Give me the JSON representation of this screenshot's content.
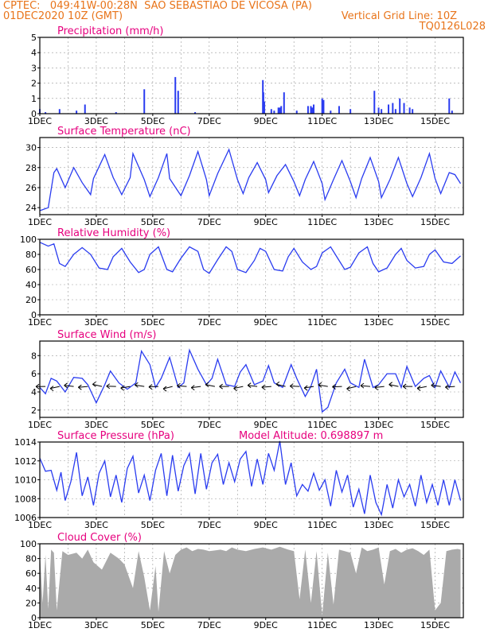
{
  "header": {
    "line1": "CPTEC:   049:41W-00:28N  SAO SEBASTIAO DE VICOSA (PA)",
    "line2": "01DEC2020 10Z (GMT)",
    "grid_note": "Vertical Grid Line: 10Z",
    "code": "TQ0126L028"
  },
  "colors": {
    "header": "#e8741a",
    "title": "#e6007e",
    "series": "#2a3cf0",
    "cloud": "#aaaaaa"
  },
  "x_ticks": [
    "1DEC",
    "3DEC",
    "5DEC",
    "7DEC",
    "9DEC",
    "11DEC",
    "13DEC",
    "15DEC"
  ],
  "chart_data": [
    {
      "id": "precip",
      "type": "bar",
      "title": "Precipitation (mm/h)",
      "ylim": [
        0,
        5
      ],
      "yticks": [
        "0",
        "1",
        "2",
        "3",
        "4",
        "5"
      ],
      "x": [
        1.0,
        1.2,
        1.7,
        2.3,
        2.6,
        3.7,
        4.7,
        5.8,
        5.9,
        6.5,
        8.9,
        8.92,
        8.95,
        9.2,
        9.3,
        9.45,
        9.5,
        9.55,
        9.65,
        10.1,
        10.5,
        10.6,
        10.65,
        10.7,
        11.0,
        11.05,
        11.3,
        11.6,
        12.0,
        12.85,
        13.0,
        13.1,
        13.35,
        13.5,
        13.6,
        13.75,
        13.9,
        14.1,
        14.2,
        15.5,
        15.6
      ],
      "values": [
        0.3,
        0.1,
        0.3,
        0.2,
        0.6,
        0.1,
        1.6,
        2.4,
        1.5,
        0.1,
        2.2,
        1.4,
        0.8,
        0.3,
        0.2,
        0.4,
        0.4,
        0.5,
        1.4,
        0.2,
        0.5,
        0.5,
        0.4,
        0.6,
        1.0,
        0.9,
        0.2,
        0.5,
        0.3,
        1.5,
        0.4,
        0.3,
        0.6,
        0.7,
        0.3,
        1.0,
        0.7,
        0.4,
        0.3,
        1.0,
        0.2
      ]
    },
    {
      "id": "temp",
      "type": "line",
      "title": "Surface Temperature (nC)",
      "ylim": [
        23.3,
        31
      ],
      "yticks": [
        "24",
        "26",
        "28",
        "30"
      ],
      "ytick_values": [
        24,
        26,
        28,
        30
      ],
      "x": [
        1.0,
        1.3,
        1.5,
        1.6,
        1.9,
        2.2,
        2.5,
        2.8,
        2.9,
        3.3,
        3.6,
        3.9,
        4.2,
        4.3,
        4.7,
        4.9,
        5.2,
        5.5,
        5.6,
        6.0,
        6.3,
        6.6,
        6.9,
        7.0,
        7.3,
        7.7,
        8.0,
        8.2,
        8.4,
        8.7,
        9.0,
        9.1,
        9.4,
        9.7,
        10.0,
        10.2,
        10.4,
        10.7,
        11.0,
        11.1,
        11.4,
        11.7,
        12.0,
        12.2,
        12.4,
        12.7,
        13.0,
        13.1,
        13.4,
        13.7,
        14.0,
        14.2,
        14.5,
        14.8,
        15.0,
        15.2,
        15.5,
        15.7,
        15.9
      ],
      "values": [
        23.7,
        24.0,
        27.5,
        27.9,
        26.0,
        28.0,
        26.5,
        25.3,
        26.9,
        29.3,
        27.0,
        25.3,
        27.0,
        29.4,
        26.8,
        25.1,
        27.0,
        29.4,
        26.9,
        25.2,
        27.2,
        29.6,
        26.8,
        25.2,
        27.4,
        29.8,
        26.8,
        25.4,
        27.0,
        28.5,
        26.8,
        25.5,
        27.2,
        28.3,
        26.6,
        25.2,
        26.8,
        28.6,
        26.4,
        24.8,
        26.8,
        28.7,
        26.6,
        25.0,
        26.9,
        29.0,
        26.6,
        25.0,
        26.8,
        29.0,
        26.4,
        25.1,
        27.0,
        29.4,
        26.9,
        25.4,
        27.5,
        27.3,
        26.4
      ]
    },
    {
      "id": "rh",
      "type": "line",
      "title": "Relative Humidity (%)",
      "ylim": [
        0,
        100
      ],
      "yticks": [
        "0",
        "20",
        "40",
        "60",
        "80",
        "100"
      ],
      "ytick_values": [
        0,
        20,
        40,
        60,
        80,
        100
      ],
      "x": [
        1.0,
        1.3,
        1.5,
        1.7,
        1.9,
        2.2,
        2.5,
        2.8,
        3.1,
        3.4,
        3.6,
        3.9,
        4.2,
        4.5,
        4.7,
        4.9,
        5.2,
        5.5,
        5.7,
        6.0,
        6.3,
        6.6,
        6.8,
        7.0,
        7.3,
        7.6,
        7.8,
        8.0,
        8.3,
        8.6,
        8.8,
        9.0,
        9.3,
        9.6,
        9.8,
        10.0,
        10.3,
        10.6,
        10.8,
        11.0,
        11.3,
        11.6,
        11.8,
        12.0,
        12.3,
        12.6,
        12.8,
        13.0,
        13.3,
        13.6,
        13.8,
        14.0,
        14.3,
        14.6,
        14.8,
        15.0,
        15.3,
        15.6,
        15.9
      ],
      "values": [
        96,
        91,
        94,
        68,
        64,
        80,
        89,
        80,
        62,
        60,
        77,
        88,
        70,
        56,
        60,
        80,
        90,
        60,
        57,
        75,
        90,
        84,
        60,
        55,
        73,
        90,
        84,
        60,
        56,
        72,
        88,
        84,
        60,
        58,
        77,
        88,
        70,
        60,
        64,
        82,
        90,
        72,
        60,
        63,
        82,
        90,
        68,
        57,
        62,
        80,
        88,
        72,
        62,
        64,
        80,
        86,
        70,
        68,
        78
      ]
    },
    {
      "id": "wind",
      "type": "line",
      "title": "Surface Wind (m/s)",
      "ylim": [
        1.2,
        9.6
      ],
      "yticks": [
        "2",
        "4",
        "6",
        "8"
      ],
      "ytick_values": [
        2,
        4,
        6,
        8
      ],
      "x": [
        1.0,
        1.2,
        1.4,
        1.6,
        1.9,
        2.2,
        2.5,
        2.7,
        3.0,
        3.3,
        3.5,
        3.8,
        4.1,
        4.4,
        4.6,
        4.9,
        5.1,
        5.3,
        5.6,
        5.9,
        6.1,
        6.3,
        6.6,
        6.9,
        7.1,
        7.3,
        7.6,
        7.9,
        8.1,
        8.3,
        8.6,
        8.9,
        9.1,
        9.3,
        9.6,
        9.9,
        10.1,
        10.4,
        10.6,
        10.8,
        11.0,
        11.2,
        11.5,
        11.8,
        12.0,
        12.3,
        12.5,
        12.8,
        13.0,
        13.3,
        13.6,
        13.8,
        14.0,
        14.3,
        14.6,
        14.8,
        15.0,
        15.2,
        15.5,
        15.7,
        15.9
      ],
      "values": [
        4.5,
        3.8,
        5.5,
        5.2,
        4.0,
        5.6,
        5.5,
        4.8,
        2.8,
        4.8,
        6.3,
        5.0,
        4.3,
        5.0,
        8.5,
        7.0,
        4.5,
        5.5,
        7.8,
        4.5,
        5.0,
        8.6,
        6.5,
        4.8,
        5.5,
        7.6,
        4.8,
        4.6,
        6.2,
        7.0,
        4.8,
        5.2,
        6.9,
        5.0,
        4.5,
        7.0,
        5.5,
        3.5,
        4.6,
        6.5,
        1.8,
        2.3,
        5.0,
        6.5,
        5.0,
        4.5,
        7.6,
        4.5,
        4.8,
        6.0,
        6.0,
        4.5,
        6.8,
        4.6,
        5.5,
        5.8,
        4.5,
        6.3,
        4.5,
        6.2,
        5.0
      ]
    },
    {
      "id": "pressure",
      "type": "line",
      "title": "Surface Pressure (hPa)",
      "annotation": "Model Altitude: 0.698897 m",
      "ylim": [
        1006,
        1014
      ],
      "yticks": [
        "1006",
        "1008",
        "1010",
        "1012",
        "1014"
      ],
      "ytick_values": [
        1006,
        1008,
        1010,
        1012,
        1014
      ],
      "x": [
        1.0,
        1.2,
        1.4,
        1.6,
        1.75,
        1.9,
        2.1,
        2.3,
        2.5,
        2.7,
        2.9,
        3.1,
        3.3,
        3.5,
        3.7,
        3.9,
        4.1,
        4.3,
        4.5,
        4.7,
        4.9,
        5.1,
        5.3,
        5.5,
        5.7,
        5.9,
        6.1,
        6.3,
        6.5,
        6.7,
        6.9,
        7.1,
        7.3,
        7.5,
        7.7,
        7.9,
        8.1,
        8.3,
        8.5,
        8.7,
        8.9,
        9.1,
        9.3,
        9.5,
        9.7,
        9.9,
        10.1,
        10.3,
        10.5,
        10.7,
        10.9,
        11.1,
        11.3,
        11.5,
        11.7,
        11.9,
        12.1,
        12.3,
        12.5,
        12.7,
        12.9,
        13.1,
        13.3,
        13.5,
        13.7,
        13.9,
        14.1,
        14.3,
        14.5,
        14.7,
        14.9,
        15.1,
        15.3,
        15.5,
        15.7,
        15.9
      ],
      "values": [
        1012.3,
        1010.9,
        1011.0,
        1008.9,
        1010.8,
        1007.8,
        1009.8,
        1012.9,
        1008.3,
        1010.3,
        1007.3,
        1010.7,
        1012.0,
        1008.2,
        1010.5,
        1007.6,
        1011.2,
        1012.5,
        1008.6,
        1010.5,
        1007.8,
        1011.0,
        1012.8,
        1008.3,
        1012.6,
        1008.8,
        1011.5,
        1012.8,
        1008.5,
        1012.8,
        1009.0,
        1011.8,
        1012.7,
        1009.5,
        1011.8,
        1009.8,
        1012.2,
        1013.0,
        1009.3,
        1012.2,
        1009.5,
        1012.8,
        1011.0,
        1014.1,
        1009.5,
        1011.8,
        1008.3,
        1009.5,
        1008.8,
        1010.7,
        1008.9,
        1010.0,
        1007.2,
        1011.0,
        1008.7,
        1010.5,
        1007.1,
        1009.0,
        1006.4,
        1010.5,
        1007.6,
        1006.3,
        1009.5,
        1007.0,
        1010.0,
        1008.2,
        1009.5,
        1007.2,
        1010.5,
        1007.6,
        1009.5,
        1007.3,
        1010.0,
        1007.3,
        1010.0,
        1007.8
      ]
    },
    {
      "id": "cloud",
      "type": "area",
      "title": "Cloud Cover (%)",
      "ylim": [
        0,
        100
      ],
      "yticks": [
        "0",
        "20",
        "40",
        "60",
        "80",
        "100"
      ],
      "ytick_values": [
        0,
        20,
        40,
        60,
        80,
        100
      ],
      "x": [
        1.0,
        1.1,
        1.2,
        1.3,
        1.4,
        1.5,
        1.6,
        1.8,
        2.0,
        2.3,
        2.5,
        2.7,
        2.9,
        3.2,
        3.5,
        3.8,
        4.0,
        4.3,
        4.5,
        4.7,
        4.9,
        5.1,
        5.2,
        5.4,
        5.6,
        5.8,
        6.0,
        6.2,
        6.4,
        6.6,
        6.8,
        7.0,
        7.2,
        7.4,
        7.6,
        7.8,
        8.0,
        8.3,
        8.6,
        8.9,
        9.2,
        9.5,
        9.8,
        10.0,
        10.2,
        10.4,
        10.6,
        10.8,
        11.0,
        11.2,
        11.4,
        11.6,
        11.8,
        12.0,
        12.2,
        12.4,
        12.6,
        12.8,
        13.0,
        13.2,
        13.4,
        13.6,
        13.8,
        14.0,
        14.2,
        14.4,
        14.6,
        14.8,
        15.0,
        15.2,
        15.4,
        15.6,
        15.8,
        15.9
      ],
      "values": [
        90,
        20,
        85,
        12,
        92,
        88,
        10,
        90,
        85,
        88,
        80,
        92,
        75,
        65,
        88,
        80,
        72,
        40,
        90,
        55,
        10,
        70,
        8,
        90,
        60,
        85,
        92,
        95,
        90,
        93,
        92,
        90,
        91,
        92,
        90,
        95,
        92,
        90,
        93,
        95,
        92,
        96,
        92,
        90,
        25,
        92,
        20,
        90,
        3,
        88,
        18,
        92,
        90,
        88,
        60,
        95,
        90,
        92,
        95,
        45,
        90,
        93,
        88,
        92,
        94,
        90,
        85,
        92,
        10,
        20,
        90,
        92,
        93,
        92
      ]
    }
  ]
}
